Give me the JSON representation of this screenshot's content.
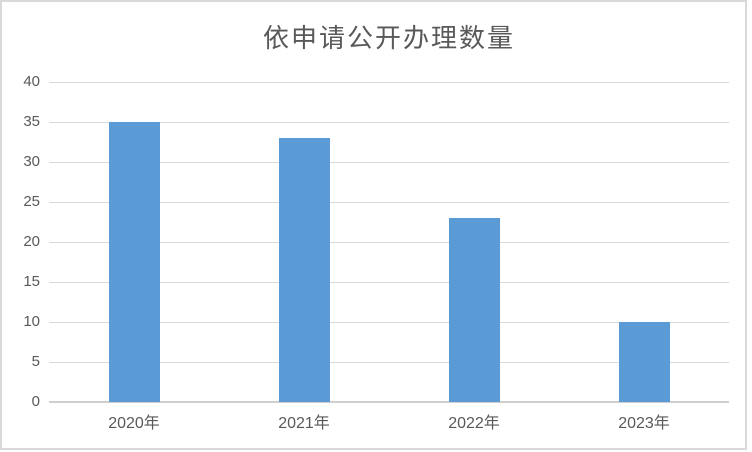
{
  "chart_data": {
    "type": "bar",
    "title": "依申请公开办理数量",
    "categories": [
      "2020年",
      "2021年",
      "2022年",
      "2023年"
    ],
    "values": [
      35,
      33,
      23,
      10
    ],
    "xlabel": "",
    "ylabel": "",
    "ylim": [
      0,
      40
    ],
    "ytick_step": 5,
    "yticks": [
      0,
      5,
      10,
      15,
      20,
      25,
      30,
      35,
      40
    ],
    "grid": true,
    "legend": "none",
    "bar_color": "#5b9bd5",
    "gridline_color": "#d9d9d9",
    "axis_line_color": "#cfcfcf",
    "text_color": "#595959",
    "frame_border_color": "#d9d9d9",
    "background_color": "#ffffff"
  }
}
